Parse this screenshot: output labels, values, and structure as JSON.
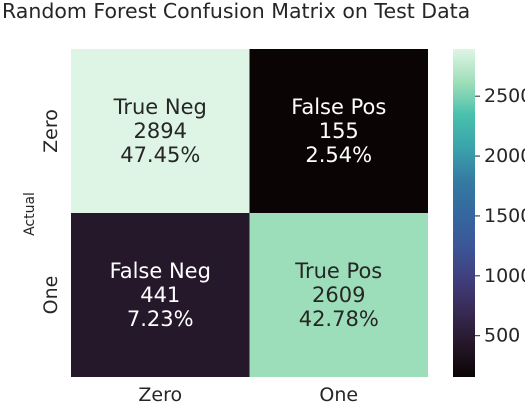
{
  "chart_data": {
    "type": "heatmap",
    "title": "Random Forest Confusion Matrix on Test Data",
    "ylabel": "Actual",
    "xlabel": "",
    "row_labels": [
      "Zero",
      "One"
    ],
    "col_labels": [
      "Zero",
      "One"
    ],
    "values": [
      [
        2894,
        155
      ],
      [
        441,
        2609
      ]
    ],
    "cells": [
      [
        {
          "name": "True Neg",
          "count": "2894",
          "percent": "47.45%"
        },
        {
          "name": "False Pos",
          "count": "155",
          "percent": "2.54%"
        }
      ],
      [
        {
          "name": "False Neg",
          "count": "441",
          "percent": "7.23%"
        },
        {
          "name": "True Pos",
          "count": "2609",
          "percent": "42.78%"
        }
      ]
    ],
    "colorbar": {
      "colormap": "mako",
      "vmin": 155,
      "vmax": 2894,
      "ticks": [
        500,
        1000,
        1500,
        2000,
        2500
      ],
      "tick_labels": [
        "500",
        "1000",
        "1500",
        "2000",
        "2500"
      ]
    },
    "colormap_stops": [
      {
        "t": 0.0,
        "color": "#0b0405"
      },
      {
        "t": 0.1,
        "color": "#251729"
      },
      {
        "t": 0.2,
        "color": "#382a54"
      },
      {
        "t": 0.3,
        "color": "#403f7d"
      },
      {
        "t": 0.4,
        "color": "#3b5698"
      },
      {
        "t": 0.5,
        "color": "#34689f"
      },
      {
        "t": 0.6,
        "color": "#357ba2"
      },
      {
        "t": 0.7,
        "color": "#3aa3ab"
      },
      {
        "t": 0.8,
        "color": "#49c1ad"
      },
      {
        "t": 0.9,
        "color": "#a0dfb9"
      },
      {
        "t": 1.0,
        "color": "#def5e5"
      }
    ],
    "text_colors": {
      "dark": "#262626",
      "light": "#ffffff"
    }
  }
}
